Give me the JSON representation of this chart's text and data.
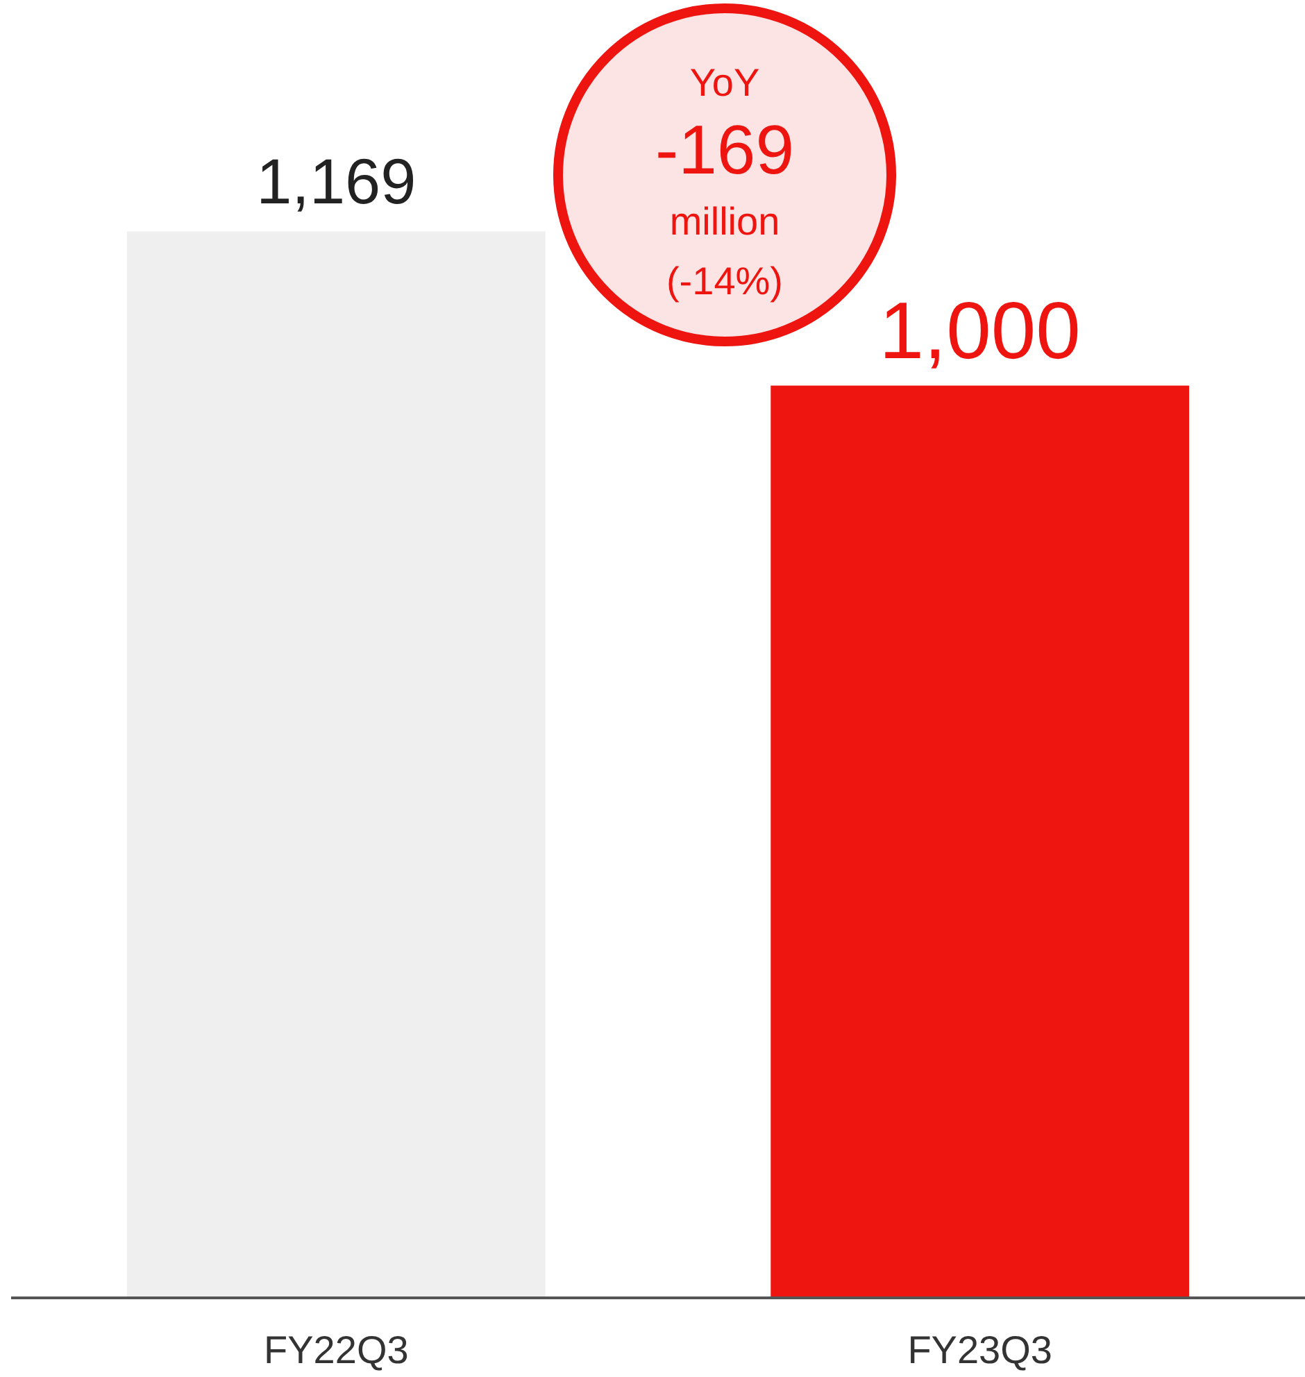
{
  "chart_data": {
    "type": "bar",
    "categories": [
      "FY22Q3",
      "FY23Q3"
    ],
    "values": [
      1169,
      1000
    ],
    "colors": [
      "#efefef",
      "#ee1410"
    ],
    "value_labels": [
      "1,169",
      "1,000"
    ],
    "annotations": [
      "YoY",
      "-169",
      "million",
      "(-14%)"
    ]
  }
}
